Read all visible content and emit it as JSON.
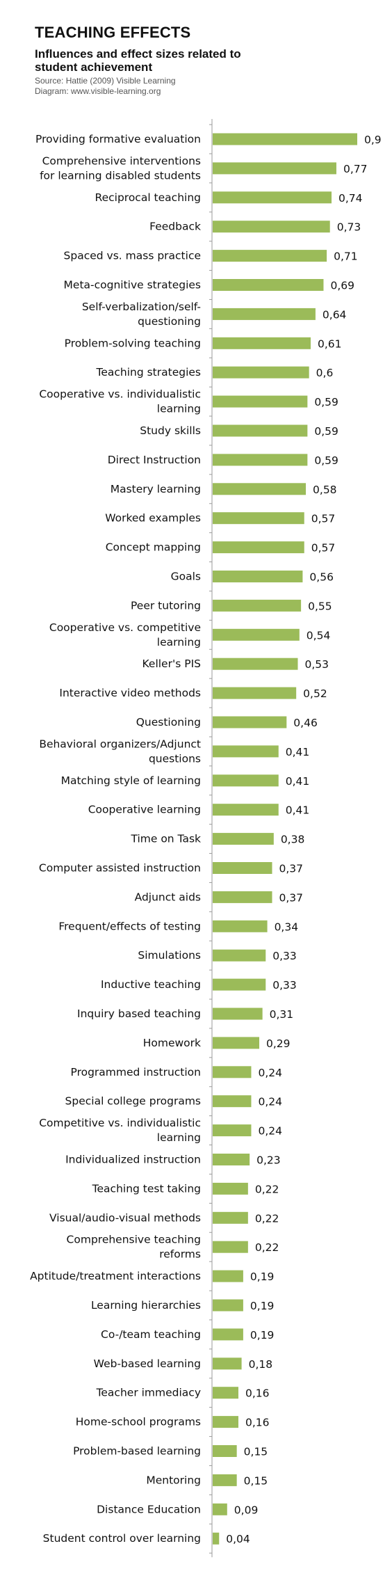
{
  "header": {
    "title": "TEACHING EFFECTS",
    "subtitle": "Influences and effect sizes related to student achievement",
    "source_line1": "Source: Hattie (2009) Visible Learning",
    "source_line2": "Diagram: www.visible-learning.org"
  },
  "chart_data": {
    "type": "bar",
    "orientation": "horizontal",
    "title": "TEACHING EFFECTS",
    "subtitle": "Influences and effect sizes related to student achievement",
    "bar_color": "#9bbb59",
    "axis_color": "#9a9a9a",
    "xlim": [
      0,
      0.9
    ],
    "categories": [
      [
        "Providing formative evaluation"
      ],
      [
        "Comprehensive interventions",
        "for learning disabled students"
      ],
      [
        "Reciprocal teaching"
      ],
      [
        "Feedback"
      ],
      [
        "Spaced vs. mass practice"
      ],
      [
        "Meta-cognitive strategies"
      ],
      [
        "Self-verbalization/self-",
        "questioning"
      ],
      [
        "Problem-solving teaching"
      ],
      [
        "Teaching strategies"
      ],
      [
        "Cooperative vs. individualistic",
        "learning"
      ],
      [
        "Study skills"
      ],
      [
        "Direct Instruction"
      ],
      [
        "Mastery learning"
      ],
      [
        "Worked examples"
      ],
      [
        "Concept mapping"
      ],
      [
        "Goals"
      ],
      [
        "Peer tutoring"
      ],
      [
        "Cooperative vs. competitive",
        "learning"
      ],
      [
        "Keller's PIS"
      ],
      [
        "Interactive video methods"
      ],
      [
        "Questioning"
      ],
      [
        "Behavioral organizers/Adjunct",
        "questions"
      ],
      [
        "Matching style of learning"
      ],
      [
        "Cooperative learning"
      ],
      [
        "Time on Task"
      ],
      [
        "Computer assisted instruction"
      ],
      [
        "Adjunct aids"
      ],
      [
        "Frequent/effects of testing"
      ],
      [
        "Simulations"
      ],
      [
        "Inductive teaching"
      ],
      [
        "Inquiry based teaching"
      ],
      [
        "Homework"
      ],
      [
        "Programmed instruction"
      ],
      [
        "Special college programs"
      ],
      [
        "Competitive vs. individualistic",
        "learning"
      ],
      [
        "Individualized instruction"
      ],
      [
        "Teaching test taking"
      ],
      [
        "Visual/audio-visual methods"
      ],
      [
        "Comprehensive teaching",
        "reforms"
      ],
      [
        "Aptitude/treatment interactions"
      ],
      [
        "Learning hierarchies"
      ],
      [
        "Co-/team teaching"
      ],
      [
        "Web-based learning"
      ],
      [
        "Teacher immediacy"
      ],
      [
        "Home-school programs"
      ],
      [
        "Problem-based learning"
      ],
      [
        "Mentoring"
      ],
      [
        "Distance Education"
      ],
      [
        "Student control over learning"
      ]
    ],
    "values": [
      0.9,
      0.77,
      0.74,
      0.73,
      0.71,
      0.69,
      0.64,
      0.61,
      0.6,
      0.59,
      0.59,
      0.59,
      0.58,
      0.57,
      0.57,
      0.56,
      0.55,
      0.54,
      0.53,
      0.52,
      0.46,
      0.41,
      0.41,
      0.41,
      0.38,
      0.37,
      0.37,
      0.34,
      0.33,
      0.33,
      0.31,
      0.29,
      0.24,
      0.24,
      0.24,
      0.23,
      0.22,
      0.22,
      0.22,
      0.19,
      0.19,
      0.19,
      0.18,
      0.16,
      0.16,
      0.15,
      0.15,
      0.09,
      0.04
    ],
    "value_labels": [
      "0,9",
      "0,77",
      "0,74",
      "0,73",
      "0,71",
      "0,69",
      "0,64",
      "0,61",
      "0,6",
      "0,59",
      "0,59",
      "0,59",
      "0,58",
      "0,57",
      "0,57",
      "0,56",
      "0,55",
      "0,54",
      "0,53",
      "0,52",
      "0,46",
      "0,41",
      "0,41",
      "0,41",
      "0,38",
      "0,37",
      "0,37",
      "0,34",
      "0,33",
      "0,33",
      "0,31",
      "0,29",
      "0,24",
      "0,24",
      "0,24",
      "0,23",
      "0,22",
      "0,22",
      "0,22",
      "0,19",
      "0,19",
      "0,19",
      "0,18",
      "0,16",
      "0,16",
      "0,15",
      "0,15",
      "0,09",
      "0,04"
    ]
  }
}
